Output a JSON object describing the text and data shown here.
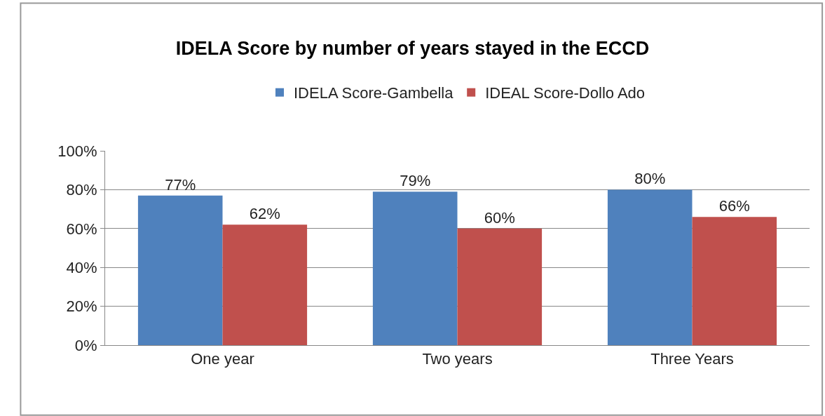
{
  "chart_data": {
    "type": "bar",
    "title": "IDELA Score by number of years stayed in the ECCD",
    "categories": [
      "One year",
      "Two years",
      "Three Years"
    ],
    "series": [
      {
        "name": "IDELA Score-Gambella",
        "color": "#4f81bd",
        "values": [
          77,
          79,
          80
        ],
        "value_labels": [
          "77%",
          "79%",
          "80%"
        ]
      },
      {
        "name": "IDEAL Score-Dollo Ado",
        "color": "#c0504d",
        "values": [
          62,
          60,
          66
        ],
        "value_labels": [
          "62%",
          "60%",
          "66%"
        ]
      }
    ],
    "ylim": [
      0,
      100
    ],
    "yticks": [
      {
        "value": 0,
        "label": "0%"
      },
      {
        "value": 20,
        "label": "20%"
      },
      {
        "value": 40,
        "label": "40%"
      },
      {
        "value": 60,
        "label": "60%"
      },
      {
        "value": 80,
        "label": "80%"
      },
      {
        "value": 100,
        "label": "100%"
      }
    ],
    "grid": "y",
    "legend": "top"
  }
}
